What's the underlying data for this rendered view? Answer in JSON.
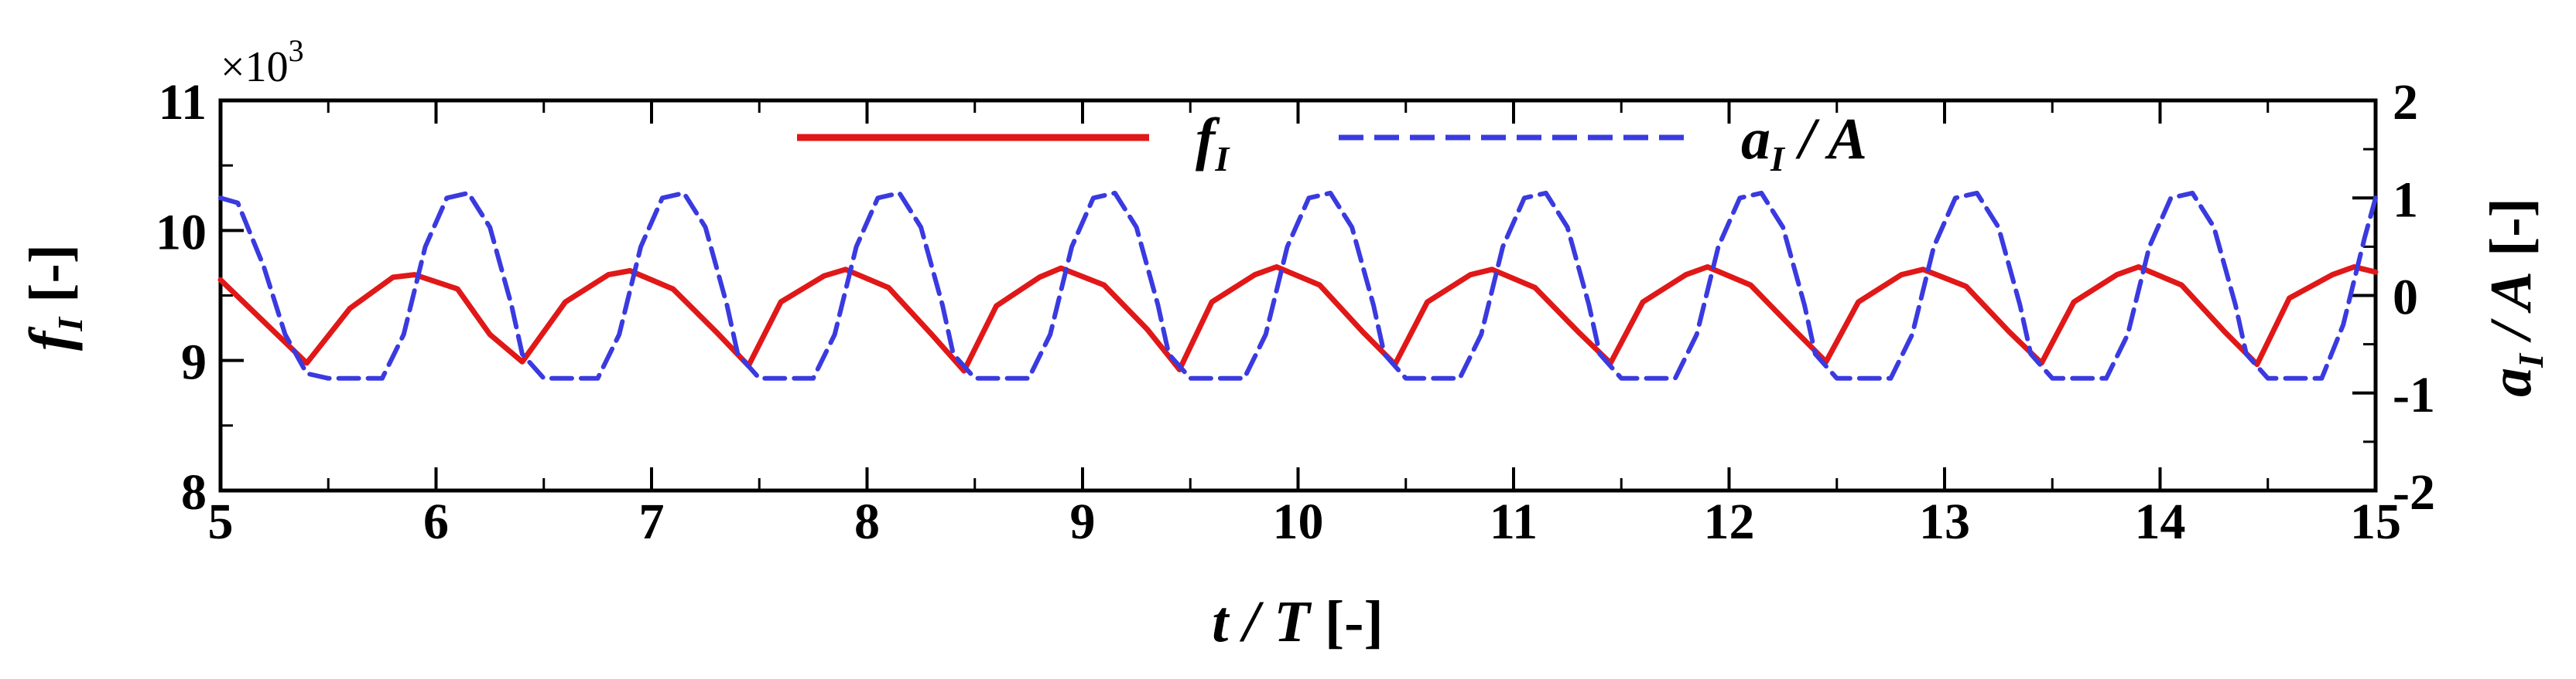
{
  "chart_data": {
    "type": "line",
    "period": "T",
    "x_unit": "[-]",
    "xlabel": {
      "italic_part": "t / T",
      "unit": "[-]"
    },
    "ylabel_left": {
      "symbol": "f",
      "subscript": "I",
      "unit": "[-]"
    },
    "ylabel_right": {
      "symbol": "a",
      "subscript": "I",
      "rest": " / A",
      "unit": "[-]"
    },
    "xlim": [
      5,
      15
    ],
    "ylim_left": [
      8,
      11
    ],
    "ylim_right": [
      -2,
      2
    ],
    "left_multiplier": {
      "base": "×10",
      "exp": "3"
    },
    "x_ticks": [
      "5",
      "6",
      "7",
      "8",
      "9",
      "10",
      "11",
      "12",
      "13",
      "14",
      "15"
    ],
    "y_ticks_left": [
      "8",
      "9",
      "10",
      "11"
    ],
    "y_ticks_right": [
      "-2",
      "-1",
      "0",
      "1",
      "2"
    ],
    "legend_position": "top-center",
    "series": [
      {
        "name": "f_I",
        "legend": {
          "symbol": "f",
          "subscript": "I"
        },
        "axis": "left",
        "color": "#e01818",
        "style": "solid",
        "x": [
          5.0,
          5.2,
          5.4,
          5.6,
          5.8,
          5.9,
          6.1,
          6.25,
          6.4,
          6.6,
          6.8,
          6.9,
          7.1,
          7.3,
          7.45,
          7.6,
          7.8,
          7.9,
          8.1,
          8.3,
          8.45,
          8.6,
          8.8,
          8.9,
          9.1,
          9.3,
          9.45,
          9.6,
          9.8,
          9.9,
          10.1,
          10.3,
          10.45,
          10.6,
          10.8,
          10.9,
          11.1,
          11.3,
          11.45,
          11.6,
          11.8,
          11.9,
          12.1,
          12.3,
          12.45,
          12.6,
          12.8,
          12.9,
          13.1,
          13.3,
          13.45,
          13.6,
          13.8,
          13.9,
          14.1,
          14.3,
          14.45,
          14.6,
          14.8,
          14.9,
          15.0
        ],
        "y": [
          9.62,
          9.3,
          8.98,
          9.4,
          9.64,
          9.66,
          9.55,
          9.2,
          8.99,
          9.45,
          9.66,
          9.69,
          9.55,
          9.22,
          8.96,
          9.45,
          9.65,
          9.7,
          9.56,
          9.2,
          8.92,
          9.42,
          9.64,
          9.71,
          9.58,
          9.24,
          8.93,
          9.45,
          9.66,
          9.72,
          9.58,
          9.22,
          8.97,
          9.45,
          9.66,
          9.7,
          9.56,
          9.22,
          8.98,
          9.45,
          9.66,
          9.72,
          9.58,
          9.24,
          8.99,
          9.45,
          9.66,
          9.7,
          9.57,
          9.22,
          8.98,
          9.45,
          9.66,
          9.72,
          9.58,
          9.22,
          8.97,
          9.48,
          9.66,
          9.72,
          9.68
        ]
      },
      {
        "name": "a_I / A",
        "legend": {
          "symbol": "a",
          "subscript": "I",
          "rest": " / A"
        },
        "axis": "right",
        "color": "#3a3ae0",
        "style": "dashed",
        "x": [
          5.0,
          5.08,
          5.2,
          5.3,
          5.4,
          5.5,
          5.75,
          5.85,
          5.95,
          6.05,
          6.15,
          6.25,
          6.35,
          6.4,
          6.5,
          6.75,
          6.85,
          6.95,
          7.05,
          7.15,
          7.25,
          7.35,
          7.4,
          7.5,
          7.75,
          7.85,
          7.95,
          8.05,
          8.15,
          8.25,
          8.35,
          8.4,
          8.5,
          8.75,
          8.85,
          8.95,
          9.05,
          9.15,
          9.25,
          9.35,
          9.4,
          9.5,
          9.75,
          9.85,
          9.95,
          10.05,
          10.15,
          10.25,
          10.35,
          10.4,
          10.5,
          10.75,
          10.85,
          10.95,
          11.05,
          11.15,
          11.25,
          11.35,
          11.4,
          11.5,
          11.75,
          11.85,
          11.95,
          12.05,
          12.15,
          12.25,
          12.35,
          12.4,
          12.5,
          12.75,
          12.85,
          12.95,
          13.05,
          13.15,
          13.25,
          13.35,
          13.4,
          13.5,
          13.75,
          13.85,
          13.95,
          14.05,
          14.15,
          14.25,
          14.35,
          14.4,
          14.5,
          14.75,
          14.85,
          14.95,
          15.0
        ],
        "y": [
          1.0,
          0.95,
          0.3,
          -0.4,
          -0.8,
          -0.85,
          -0.85,
          -0.4,
          0.5,
          1.0,
          1.05,
          0.7,
          -0.1,
          -0.6,
          -0.85,
          -0.85,
          -0.4,
          0.5,
          1.0,
          1.05,
          0.7,
          -0.1,
          -0.6,
          -0.85,
          -0.85,
          -0.4,
          0.5,
          1.0,
          1.05,
          0.7,
          -0.1,
          -0.6,
          -0.85,
          -0.85,
          -0.4,
          0.5,
          1.0,
          1.05,
          0.7,
          -0.1,
          -0.6,
          -0.85,
          -0.85,
          -0.4,
          0.5,
          1.0,
          1.05,
          0.7,
          -0.1,
          -0.6,
          -0.85,
          -0.85,
          -0.4,
          0.5,
          1.0,
          1.05,
          0.7,
          -0.1,
          -0.6,
          -0.85,
          -0.85,
          -0.4,
          0.5,
          1.0,
          1.05,
          0.7,
          -0.1,
          -0.6,
          -0.85,
          -0.85,
          -0.4,
          0.5,
          1.0,
          1.05,
          0.7,
          -0.1,
          -0.6,
          -0.85,
          -0.85,
          -0.4,
          0.5,
          1.0,
          1.05,
          0.7,
          -0.1,
          -0.6,
          -0.85,
          -0.85,
          -0.3,
          0.6,
          1.0
        ]
      }
    ]
  }
}
